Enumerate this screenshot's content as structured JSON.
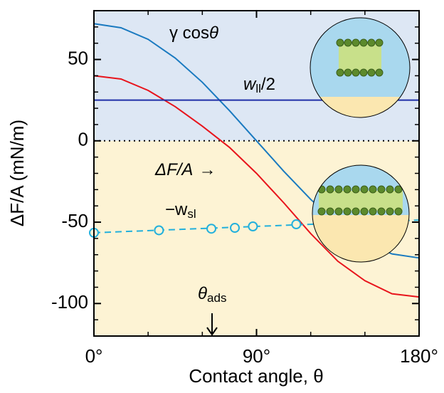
{
  "chart_data": {
    "type": "line",
    "y_label": "ΔF/A (mN/m)",
    "x_label": "Contact angle, θ",
    "xlim": [
      0,
      180
    ],
    "ylim": [
      -120,
      80
    ],
    "xticks": [
      {
        "value": 0,
        "label": "0°"
      },
      {
        "value": 90,
        "label": "90°"
      },
      {
        "value": 180,
        "label": "180°"
      }
    ],
    "xminorticks": [
      30,
      60,
      120,
      150
    ],
    "yticks": [
      50,
      0,
      -50,
      -100
    ],
    "yminorticks": [
      70,
      60,
      40,
      30,
      20,
      10,
      -10,
      -20,
      -30,
      -40,
      -60,
      -70,
      -80,
      -90,
      -110
    ],
    "zero_line": true,
    "regions": [
      {
        "from": 0,
        "to": 80,
        "color": "#dde7f4"
      },
      {
        "from": -120,
        "to": 0,
        "color": "#fdf3d4"
      }
    ],
    "series": [
      {
        "style": "line",
        "color": "#1a7ac0",
        "x": [
          0,
          15,
          30,
          45,
          60,
          75,
          90,
          105,
          120,
          135,
          150,
          165,
          180
        ],
        "values": [
          72,
          69.5,
          62.4,
          50.9,
          36,
          18.6,
          0,
          -18.6,
          -36,
          -50.9,
          -62.4,
          -69.5,
          -72
        ]
      },
      {
        "style": "line",
        "color": "#e8141c",
        "x": [
          0,
          15,
          30,
          45,
          60,
          75,
          90,
          105,
          120,
          135,
          150,
          165,
          180
        ],
        "values": [
          40,
          38,
          31,
          21,
          9,
          -4,
          -20,
          -38,
          -57,
          -74,
          -86,
          -94,
          -96
        ]
      },
      {
        "style": "line",
        "color": "#1f2fa8",
        "x": [
          0,
          180
        ],
        "values": [
          25,
          25
        ]
      },
      {
        "style": "dashed",
        "color": "#22b0dc",
        "x": [
          0,
          180
        ],
        "values": [
          -56.5,
          -48.7
        ]
      },
      {
        "style": "markers",
        "color": "#22b0dc",
        "x": [
          0,
          36,
          65,
          78,
          88,
          112
        ],
        "values": [
          -56.5,
          -55,
          -54,
          -53.5,
          -52.6,
          -51.3
        ]
      }
    ],
    "annotations": {
      "gamma": {
        "main": "γ cos",
        "italic": "θ"
      },
      "wll": {
        "main": "w",
        "sub": "ll",
        "tail": "/2"
      },
      "df": {
        "main": "ΔF/A",
        "tail": "→"
      },
      "wsl": {
        "main": "−w",
        "sub": "sl"
      },
      "theta": {
        "main": "θ",
        "sub": "ads"
      }
    }
  }
}
